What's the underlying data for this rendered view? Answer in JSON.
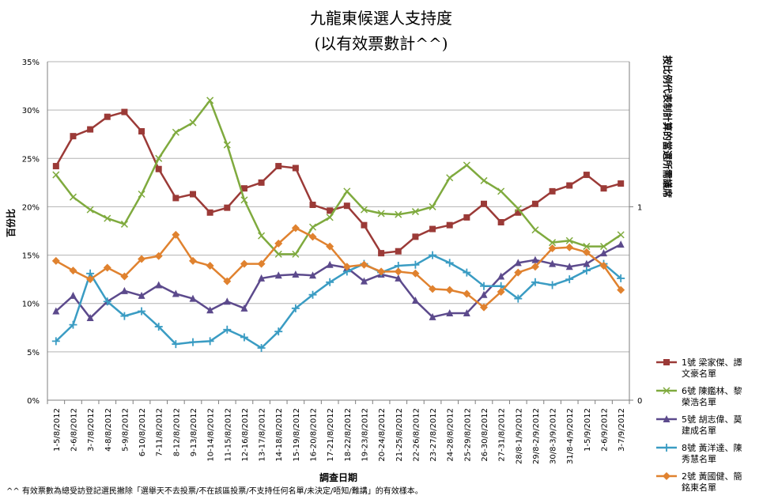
{
  "chart_data": {
    "type": "line",
    "title": "九龍東候選人支持度",
    "subtitle": "(以有效票數計^^)",
    "xlabel": "調查日期",
    "ylabel": "百份比",
    "y2label": "按比例代表制計算的當選所需議席",
    "ylim": [
      0,
      35
    ],
    "y_ticks": [
      "0%",
      "5%",
      "10%",
      "15%",
      "20%",
      "25%",
      "30%",
      "35%"
    ],
    "y2_ticks": [
      "0",
      "1"
    ],
    "grid": true,
    "legend_position": "right",
    "categories": [
      "1-5/8/2012",
      "2-6/8/2012",
      "3-7/8/2012",
      "4-8/8/2012",
      "5-9/8/2012",
      "6-10/8/2012",
      "7-11/8/2012",
      "8-12/8/2012",
      "9-13/8/2012",
      "10-14/8/2012",
      "11-15/8/2012",
      "12-16/8/2012",
      "13-17/8/2012",
      "14-18/8/2012",
      "15-19/8/2012",
      "16-20/8/2012",
      "17-21/8/2012",
      "18-22/8/2012",
      "19-23/8/2012",
      "20-24/8/2012",
      "21-25/8/2012",
      "22-26/8/2012",
      "23-27/8/2012",
      "24-28/8/2012",
      "25-29/8/2012",
      "26-30/8/2012",
      "27-31/8/2012",
      "28/8-1/9/2012",
      "29/8-2/9/2012",
      "30/8-3/9/2012",
      "31/8-4/9/2012",
      "1-5/9/2012",
      "2-6/9/2012",
      "3-7/9/2012"
    ],
    "series": [
      {
        "name": "1號 梁家傑、譚文豪名單",
        "color": "#9b3a37",
        "marker": "square",
        "values": [
          24.2,
          27.3,
          28.0,
          29.3,
          29.8,
          27.8,
          23.9,
          20.9,
          21.3,
          19.4,
          19.9,
          21.9,
          22.5,
          24.2,
          24.0,
          20.2,
          19.6,
          20.1,
          18.1,
          15.2,
          15.4,
          16.9,
          17.7,
          18.1,
          18.9,
          20.3,
          18.4,
          19.4,
          20.3,
          21.6,
          22.2,
          23.3,
          21.9,
          22.4
        ]
      },
      {
        "name": "6號 陳鑑林、黎榮浩名單",
        "color": "#7faa3e",
        "marker": "x",
        "values": [
          23.3,
          21.0,
          19.7,
          18.8,
          18.2,
          21.3,
          25.0,
          27.7,
          28.7,
          31.0,
          26.4,
          20.7,
          17.0,
          15.1,
          15.1,
          17.9,
          18.9,
          21.6,
          19.7,
          19.3,
          19.2,
          19.5,
          20.0,
          23.0,
          24.3,
          22.7,
          21.6,
          19.8,
          17.6,
          16.3,
          16.5,
          15.9,
          15.9,
          17.1
        ]
      },
      {
        "name": "5號 胡志偉、莫建成名單",
        "color": "#5c4a8c",
        "marker": "triangle",
        "values": [
          9.2,
          10.8,
          8.5,
          10.2,
          11.3,
          10.8,
          11.9,
          11.0,
          10.5,
          9.3,
          10.2,
          9.5,
          12.6,
          12.9,
          13.0,
          12.9,
          14.0,
          13.7,
          12.3,
          13.0,
          12.6,
          10.3,
          8.6,
          9.0,
          9.0,
          10.9,
          12.8,
          14.2,
          14.5,
          14.1,
          13.8,
          14.1,
          15.2,
          16.1
        ]
      },
      {
        "name": "8號 黃洋達、陳秀慧名單",
        "color": "#3a9cc3",
        "marker": "plus",
        "values": [
          6.1,
          7.8,
          13.1,
          10.2,
          8.7,
          9.2,
          7.6,
          5.8,
          6.0,
          6.1,
          7.3,
          6.5,
          5.4,
          7.1,
          9.5,
          10.9,
          12.2,
          13.3,
          14.1,
          13.2,
          13.9,
          14.0,
          15.0,
          14.2,
          13.2,
          11.8,
          11.8,
          10.5,
          12.2,
          11.9,
          12.5,
          13.4,
          14.1,
          12.6
        ]
      },
      {
        "name": "2號 黃國健、簡銘東名單",
        "color": "#e0822f",
        "marker": "diamond",
        "values": [
          14.4,
          13.4,
          12.5,
          13.7,
          12.8,
          14.6,
          14.9,
          17.1,
          14.4,
          13.9,
          12.3,
          14.1,
          14.1,
          16.2,
          17.8,
          16.9,
          15.9,
          13.8,
          14.0,
          13.3,
          13.3,
          13.1,
          11.5,
          11.4,
          11.0,
          9.6,
          11.2,
          13.2,
          13.8,
          15.7,
          15.8,
          15.3,
          13.9,
          11.4
        ]
      }
    ]
  },
  "footnote": "^^ 有效票數為總受訪登記選民撇除「選舉天不去投票/不在該區投票/不支持任何名單/未決定/唔知/難講」的有效樣本。"
}
